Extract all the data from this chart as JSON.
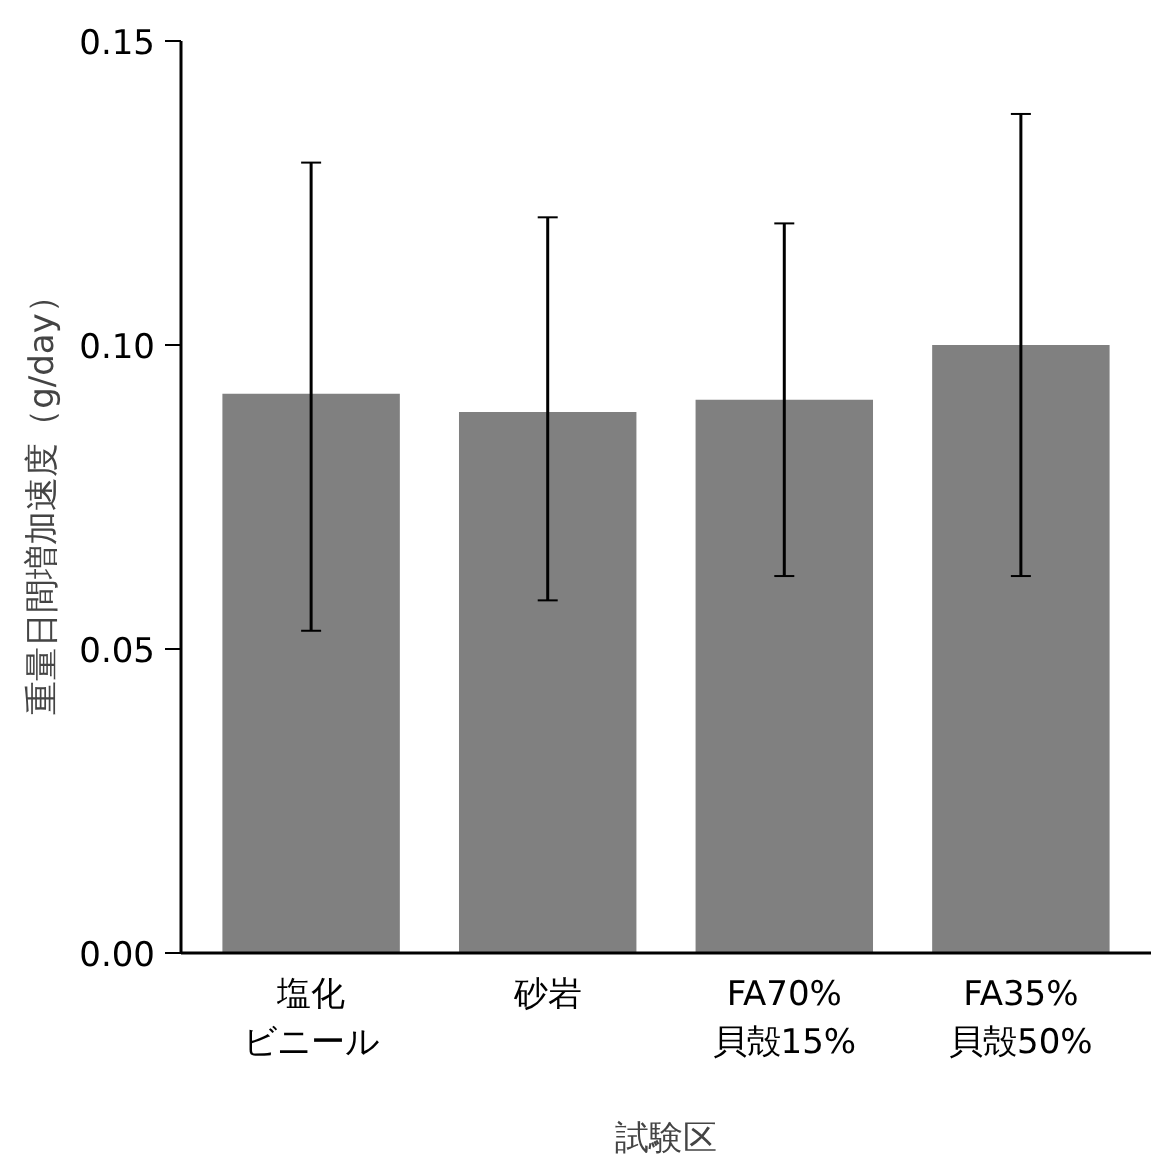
{
  "chart_data": {
    "type": "bar",
    "xlabel": "試験区",
    "ylabel": "重量日間増加速度（g/day）",
    "categories": [
      "塩化ビニール",
      "砂岩",
      "FA70%\n貝殻15%",
      "FA35%\n貝殻50%"
    ],
    "values": [
      0.092,
      0.089,
      0.091,
      0.1
    ],
    "errors": [
      [
        0.053,
        0.13
      ],
      [
        0.058,
        0.121
      ],
      [
        0.062,
        0.12
      ],
      [
        0.062,
        0.138
      ]
    ],
    "color": "#808080",
    "ylim": [
      0,
      0.15
    ],
    "yticks": [
      {
        "value": 0,
        "label": "0.00"
      },
      {
        "value": 0.05,
        "label": "0.05"
      },
      {
        "value": 0.1,
        "label": "0.10"
      },
      {
        "value": 0.15,
        "label": "0.15"
      }
    ],
    "grid": false
  }
}
